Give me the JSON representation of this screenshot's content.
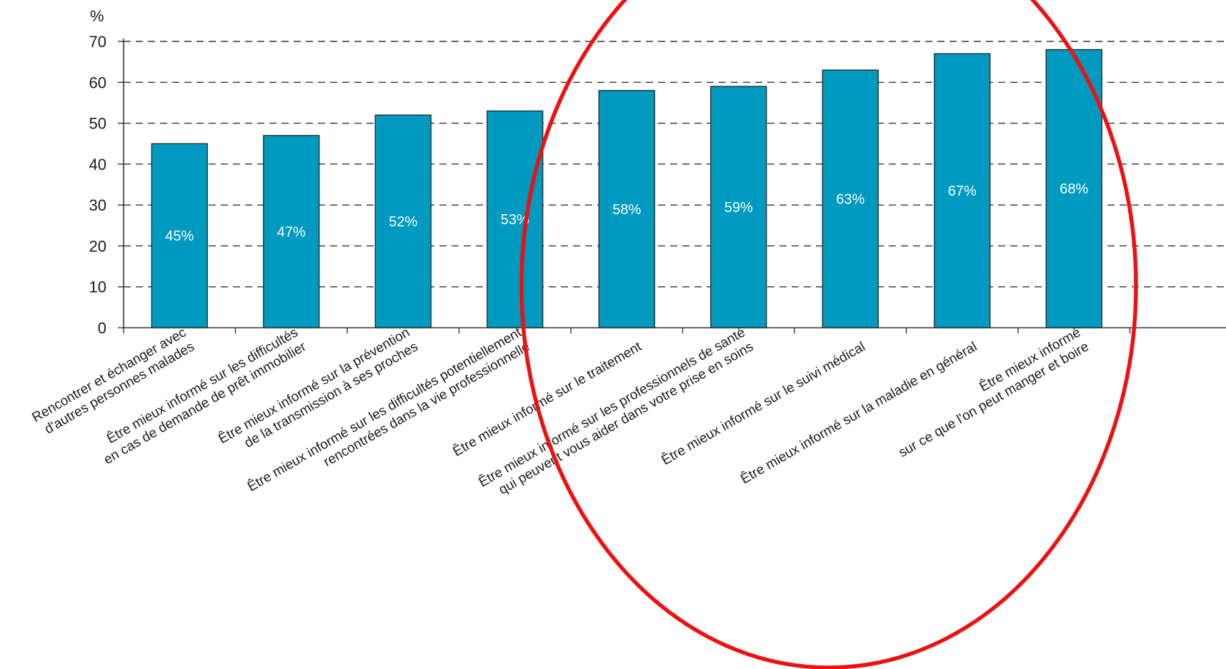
{
  "chart_data": {
    "type": "bar",
    "y_unit": "%",
    "ylim": [
      0,
      70
    ],
    "y_ticks": [
      "0",
      "10",
      "20",
      "30",
      "40",
      "50",
      "60",
      "70"
    ],
    "grid": true,
    "grid_style": "dashed",
    "categories": [
      [
        "Rencontrer et échanger avec",
        "d'autres personnes malades"
      ],
      [
        "Être mieux informé sur les difficultés",
        "en cas de demande de prêt immobilier"
      ],
      [
        "Être mieux informé sur la prévention",
        "de la transmission à ses proches"
      ],
      [
        "Être mieux informé sur les difficultés potentiellement",
        "rencontrées dans la vie professionnelle"
      ],
      [
        "Être mieux informé sur le traitement"
      ],
      [
        "Être mieux informé sur les professionnels de santé",
        "qui peuvent vous aider dans votre prise en soins"
      ],
      [
        "Être mieux informé sur le suivi médical"
      ],
      [
        "Être mieux informé sur la maladie en général"
      ],
      [
        "Être mieux informé",
        "sur ce que l'on peut manger et boire"
      ]
    ],
    "values": [
      45,
      47,
      52,
      53,
      58,
      59,
      63,
      67,
      68
    ],
    "data_labels": [
      "45%",
      "47%",
      "52%",
      "53%",
      "58%",
      "59%",
      "63%",
      "67%",
      "68%"
    ],
    "annotation": "red ellipse highlighting the bars from 58% to 68%"
  },
  "colors": {
    "bar": "#0099bf",
    "bar_stroke": "#1a1a1a",
    "grid": "#333333",
    "axis": "#333333",
    "highlight": "#ee1111"
  }
}
